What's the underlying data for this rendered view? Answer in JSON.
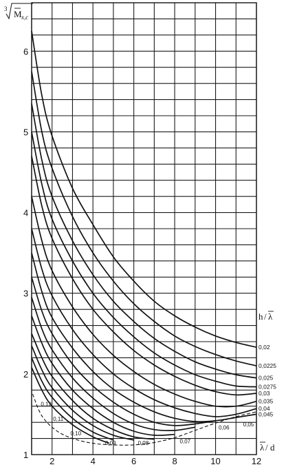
{
  "chart_data": {
    "type": "line",
    "title": "",
    "xlabel": "λ̄/d",
    "ylabel": "∛M̄x,c",
    "ylabel_parts": {
      "root_index": "3",
      "base": "M",
      "subscript": "x,c"
    },
    "xlabel_parts": {
      "numerator": "λ",
      "denominator": "d"
    },
    "xlim": [
      1,
      12
    ],
    "ylim": [
      1,
      6.6
    ],
    "x_ticks": [
      2,
      4,
      6,
      8,
      10,
      12
    ],
    "x_tick_labels": [
      "2",
      "4",
      "6",
      "8",
      "10",
      "12"
    ],
    "y_ticks": [
      1,
      2,
      3,
      4,
      5,
      6
    ],
    "y_tick_labels": [
      "1",
      "2",
      "3",
      "4",
      "5",
      "6"
    ],
    "grid": true,
    "legend_title": "h/λ̄",
    "legend_title_parts": {
      "numerator": "h",
      "denominator": "λ"
    },
    "legend_placement": "right",
    "series": [
      {
        "label": "0,02",
        "x": [
          1.0,
          1.5,
          2,
          3,
          4,
          5,
          6,
          7,
          8,
          9,
          10,
          11,
          12
        ],
        "y": [
          6.25,
          5.45,
          4.95,
          4.3,
          3.85,
          3.45,
          3.15,
          2.9,
          2.72,
          2.58,
          2.47,
          2.39,
          2.33
        ]
      },
      {
        "label": "0,0225",
        "x": [
          1.0,
          1.5,
          2,
          3,
          4,
          5,
          6,
          7,
          8,
          9,
          10,
          11,
          12
        ],
        "y": [
          5.75,
          5.0,
          4.55,
          3.95,
          3.5,
          3.15,
          2.87,
          2.65,
          2.47,
          2.34,
          2.24,
          2.16,
          2.1
        ]
      },
      {
        "label": "0,025",
        "x": [
          1.0,
          1.5,
          2,
          3,
          4,
          5,
          6,
          7,
          8,
          9,
          10,
          11,
          12
        ],
        "y": [
          5.35,
          4.65,
          4.2,
          3.65,
          3.23,
          2.9,
          2.65,
          2.44,
          2.28,
          2.15,
          2.06,
          1.99,
          1.95
        ]
      },
      {
        "label": "0,0275",
        "x": [
          1.0,
          1.5,
          2,
          3,
          4,
          5,
          6,
          7,
          8,
          9,
          10,
          11,
          12
        ],
        "y": [
          5.0,
          4.35,
          3.92,
          3.4,
          3.0,
          2.7,
          2.46,
          2.26,
          2.11,
          1.99,
          1.91,
          1.85,
          1.84
        ]
      },
      {
        "label": "0,03",
        "x": [
          1.0,
          1.5,
          2,
          3,
          4,
          5,
          6,
          7,
          8,
          9,
          10,
          11,
          12
        ],
        "y": [
          4.7,
          4.08,
          3.68,
          3.18,
          2.8,
          2.52,
          2.29,
          2.11,
          1.97,
          1.86,
          1.78,
          1.74,
          1.76
        ]
      },
      {
        "label": "0,035",
        "x": [
          1.0,
          1.5,
          2,
          3,
          4,
          5,
          6,
          7,
          8,
          9,
          10,
          11,
          12
        ],
        "y": [
          4.2,
          3.65,
          3.28,
          2.83,
          2.49,
          2.23,
          2.03,
          1.87,
          1.75,
          1.66,
          1.6,
          1.6,
          1.66
        ]
      },
      {
        "label": "0,04",
        "x": [
          1.0,
          1.5,
          2,
          3,
          4,
          5,
          6,
          7,
          8,
          9,
          10,
          11,
          12
        ],
        "y": [
          3.8,
          3.3,
          2.97,
          2.55,
          2.24,
          2.0,
          1.82,
          1.68,
          1.58,
          1.51,
          1.47,
          1.5,
          1.57
        ]
      },
      {
        "label": "0,045",
        "x": [
          1.0,
          1.5,
          2,
          3,
          4,
          5,
          6,
          7,
          8,
          9,
          10,
          11,
          12
        ],
        "y": [
          3.5,
          3.02,
          2.7,
          2.32,
          2.03,
          1.81,
          1.65,
          1.53,
          1.45,
          1.41,
          1.42,
          1.46,
          1.5
        ]
      },
      {
        "label": "",
        "x": [
          1.0,
          1.5,
          2,
          3,
          4,
          5,
          6,
          7,
          8,
          9,
          10
        ],
        "y": [
          3.2,
          2.78,
          2.5,
          2.12,
          1.85,
          1.65,
          1.5,
          1.4,
          1.36,
          1.38,
          1.42
        ]
      },
      {
        "label": "",
        "x": [
          1.0,
          1.5,
          2,
          3,
          4,
          5,
          6,
          7,
          8,
          9
        ],
        "y": [
          2.95,
          2.56,
          2.3,
          1.95,
          1.7,
          1.51,
          1.38,
          1.31,
          1.3,
          1.34
        ]
      },
      {
        "label": "",
        "x": [
          1.0,
          1.5,
          2,
          3,
          4,
          5,
          6,
          7,
          8
        ],
        "y": [
          2.72,
          2.38,
          2.13,
          1.8,
          1.57,
          1.4,
          1.29,
          1.24,
          1.25
        ]
      },
      {
        "label": "",
        "x": [
          1.0,
          1.5,
          2,
          3,
          4,
          5,
          6,
          7
        ],
        "y": [
          2.5,
          2.2,
          1.97,
          1.67,
          1.45,
          1.31,
          1.22,
          1.19
        ]
      },
      {
        "label": "",
        "x": [
          1.0,
          1.5,
          2,
          3,
          4,
          5,
          6
        ],
        "y": [
          2.35,
          2.05,
          1.83,
          1.55,
          1.36,
          1.24,
          1.18
        ]
      },
      {
        "label": "",
        "x": [
          1.0,
          1.5,
          2,
          3,
          4,
          5
        ],
        "y": [
          2.2,
          1.91,
          1.71,
          1.45,
          1.28,
          1.18
        ]
      },
      {
        "label": "",
        "x": [
          1.0,
          1.5,
          2,
          3,
          4,
          4.8
        ],
        "y": [
          2.08,
          1.8,
          1.6,
          1.37,
          1.22,
          1.14
        ]
      }
    ],
    "envelope": {
      "style": "dashed",
      "x": [
        1.05,
        1.5,
        2.2,
        3,
        4,
        5,
        6,
        7,
        8,
        9,
        10,
        11,
        12
      ],
      "y": [
        1.75,
        1.48,
        1.3,
        1.2,
        1.14,
        1.12,
        1.12,
        1.15,
        1.21,
        1.3,
        1.39,
        1.47,
        1.53
      ],
      "labels": [
        {
          "text": "0,12",
          "x": 1.45,
          "y": 1.6
        },
        {
          "text": "0,11",
          "x": 2.05,
          "y": 1.42
        },
        {
          "text": "0,10",
          "x": 2.9,
          "y": 1.24
        },
        {
          "text": "0,09",
          "x": 4.6,
          "y": 1.12
        },
        {
          "text": "0,08",
          "x": 6.2,
          "y": 1.12
        },
        {
          "text": "0,07",
          "x": 8.25,
          "y": 1.14
        },
        {
          "text": "0,06",
          "x": 10.15,
          "y": 1.31
        },
        {
          "text": "0,05",
          "x": 11.35,
          "y": 1.35
        }
      ]
    }
  }
}
